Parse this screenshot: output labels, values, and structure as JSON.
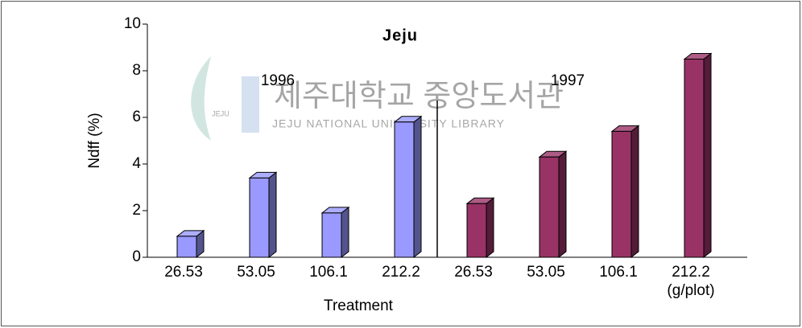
{
  "chart_data": {
    "type": "bar3d",
    "title": "Jeju",
    "categories": [
      "26.53",
      "53.05",
      "106.1",
      "212.2",
      "26.53",
      "53.05",
      "106.1",
      "212.2"
    ],
    "series": [
      {
        "name": "1996",
        "color": "#9999ff",
        "values": [
          0.9,
          3.4,
          1.9,
          5.8,
          null,
          null,
          null,
          null
        ]
      },
      {
        "name": "1997",
        "color": "#993366",
        "values": [
          null,
          null,
          null,
          null,
          2.3,
          4.3,
          5.4,
          8.5
        ]
      }
    ],
    "ylim": [
      0,
      10
    ],
    "yticks": [
      0,
      2,
      4,
      6,
      8,
      10
    ],
    "x_label": "Treatment",
    "y_label": "Ndff (%)",
    "unit_label": "(g/plot)",
    "watermark": {
      "title": "제주대학교 중앙도서관",
      "subtitle": "JEJU NATIONAL UNIVERSITY LIBRARY",
      "logo": "JEJU"
    }
  }
}
